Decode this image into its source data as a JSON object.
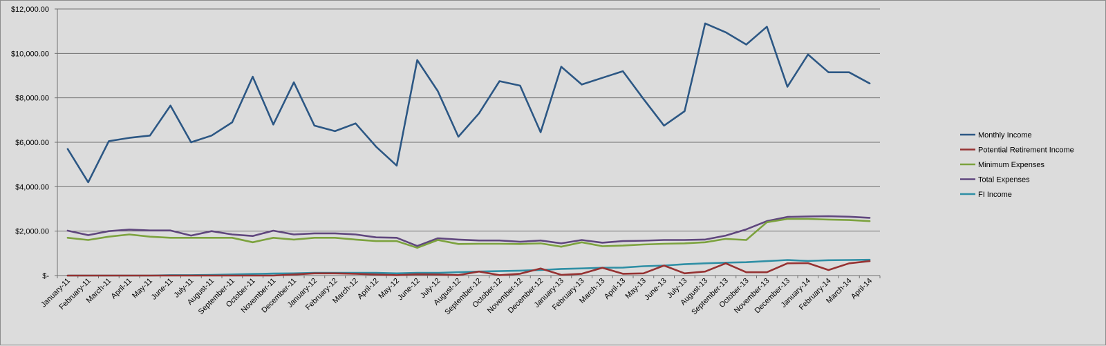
{
  "chart_data": {
    "type": "line",
    "title": "",
    "xlabel": "",
    "ylabel": "",
    "ylim": [
      0,
      12000
    ],
    "yticks": [
      0,
      2000,
      4000,
      6000,
      8000,
      10000,
      12000
    ],
    "ytick_labels": [
      "$-",
      "$2,000.00",
      "$4,000.00",
      "$6,000.00",
      "$8,000.00",
      "$10,000.00",
      "$12,000.00"
    ],
    "grid": "horizontal",
    "legend_position": "right",
    "categories": [
      "January-11",
      "February-11",
      "March-11",
      "April-11",
      "May-11",
      "June-11",
      "July-11",
      "August-11",
      "September-11",
      "October-11",
      "November-11",
      "December-11",
      "January-12",
      "February-12",
      "March-12",
      "April-12",
      "May-12",
      "June-12",
      "July-12",
      "August-12",
      "September-12",
      "October-12",
      "November-12",
      "December-12",
      "January-13",
      "February-13",
      "March-13",
      "April-13",
      "May-13",
      "June-13",
      "July-13",
      "August-13",
      "September-13",
      "October-13",
      "November-13",
      "December-13",
      "January-14",
      "February-14",
      "March-14",
      "April-14"
    ],
    "series": [
      {
        "name": "Monthly Income",
        "color": "#2c5784",
        "values": [
          5700,
          4200,
          6050,
          6200,
          6300,
          7650,
          6000,
          6300,
          6900,
          8950,
          6800,
          8700,
          6750,
          6500,
          6850,
          5800,
          4950,
          9700,
          8300,
          6250,
          7300,
          8750,
          8550,
          6450,
          9400,
          8600,
          8900,
          9200,
          7950,
          6750,
          7400,
          11350,
          10950,
          10400,
          11200,
          8500,
          9950,
          9150,
          9150,
          8650
        ]
      },
      {
        "name": "Potential Retirement Income",
        "color": "#963232",
        "values": [
          0,
          0,
          0,
          0,
          0,
          0,
          0,
          0,
          0,
          0,
          0,
          50,
          100,
          100,
          80,
          50,
          20,
          60,
          50,
          20,
          180,
          20,
          80,
          320,
          30,
          80,
          350,
          80,
          100,
          450,
          100,
          180,
          550,
          150,
          150,
          550,
          560,
          250,
          550,
          650
        ]
      },
      {
        "name": "Minimum Expenses",
        "color": "#7ca23e",
        "values": [
          1700,
          1600,
          1750,
          1850,
          1750,
          1700,
          1700,
          1700,
          1700,
          1500,
          1700,
          1620,
          1700,
          1700,
          1620,
          1550,
          1550,
          1250,
          1600,
          1420,
          1430,
          1430,
          1420,
          1450,
          1300,
          1500,
          1320,
          1350,
          1400,
          1430,
          1450,
          1500,
          1650,
          1600,
          2400,
          2550,
          2550,
          2520,
          2500,
          2450
        ]
      },
      {
        "name": "Total Expenses",
        "color": "#60477e",
        "values": [
          2020,
          1820,
          2000,
          2070,
          2030,
          2030,
          1800,
          2000,
          1850,
          1780,
          2020,
          1850,
          1900,
          1900,
          1850,
          1720,
          1700,
          1330,
          1680,
          1620,
          1580,
          1580,
          1520,
          1580,
          1450,
          1600,
          1480,
          1550,
          1570,
          1600,
          1600,
          1620,
          1800,
          2080,
          2450,
          2640,
          2660,
          2670,
          2650,
          2600
        ]
      },
      {
        "name": "FI Income",
        "color": "#2f8fa5",
        "values": [
          0,
          0,
          0,
          0,
          0,
          20,
          20,
          30,
          50,
          70,
          90,
          100,
          120,
          120,
          120,
          120,
          100,
          120,
          120,
          150,
          180,
          200,
          220,
          250,
          300,
          320,
          350,
          360,
          420,
          450,
          510,
          550,
          580,
          600,
          650,
          700,
          660,
          690,
          700,
          710
        ]
      }
    ]
  }
}
